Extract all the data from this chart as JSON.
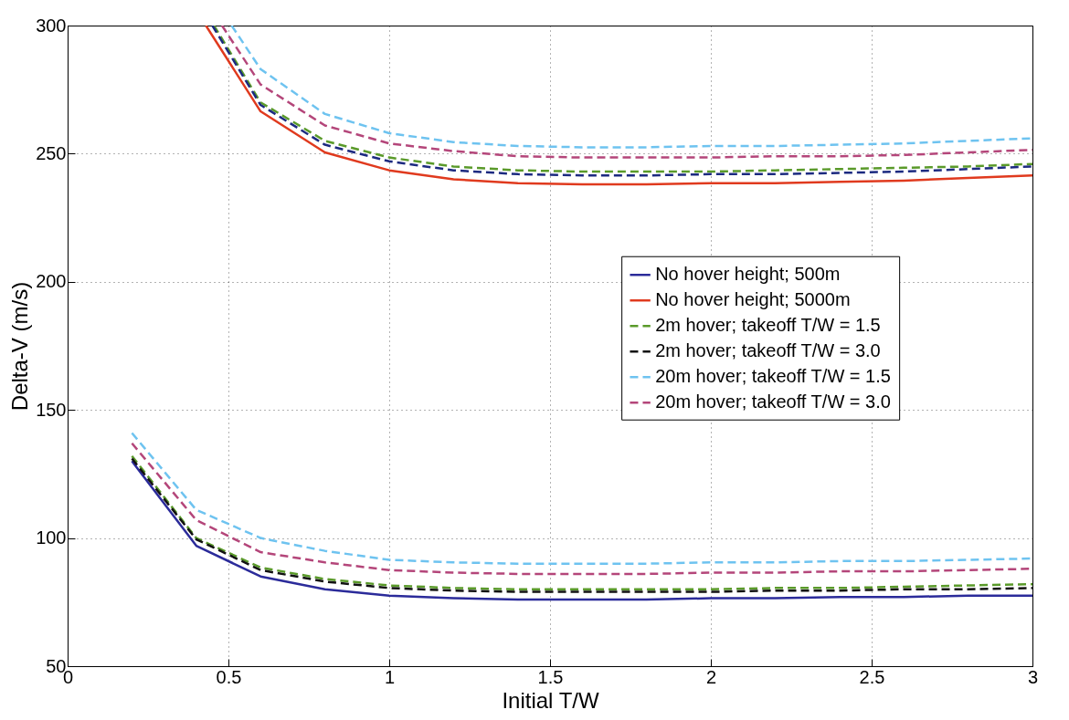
{
  "chart_data": {
    "type": "line",
    "xlabel": "Initial T/W",
    "ylabel": "Delta-V (m/s)",
    "xlim": [
      0,
      3
    ],
    "ylim": [
      50,
      300
    ],
    "xticks": [
      0,
      0.5,
      1,
      1.5,
      2,
      2.5,
      3
    ],
    "yticks": [
      50,
      100,
      150,
      200,
      250,
      300
    ],
    "grid": true,
    "legend": "right",
    "series": [
      {
        "name": "No hover height; 500m",
        "color": "#2b2b9a",
        "line_style": "solid",
        "x": [
          0.2,
          0.4,
          0.6,
          0.8,
          1.0,
          1.2,
          1.4,
          1.6,
          1.8,
          2.0,
          2.2,
          2.4,
          2.6,
          2.8,
          3.0
        ],
        "values": [
          130,
          97,
          85,
          80,
          77.5,
          76.5,
          76,
          76,
          76,
          76.5,
          76.5,
          77,
          77,
          77.5,
          77.5
        ]
      },
      {
        "name": "No hover height; 5000m",
        "color": "#e03a1e",
        "line_style": "solid",
        "x": [
          0.43,
          0.6,
          0.8,
          1.0,
          1.2,
          1.4,
          1.6,
          1.8,
          2.0,
          2.2,
          2.4,
          2.6,
          2.8,
          3.0
        ],
        "values": [
          300,
          266.5,
          250.5,
          243.5,
          240,
          238.5,
          238,
          238,
          238.5,
          238.5,
          239,
          239.5,
          240.5,
          241.5
        ]
      },
      {
        "name": "2m hover; takeoff T/W = 1.5",
        "color": "#5a9a2a",
        "line_style": "dashed",
        "x": [
          0.2,
          0.4,
          0.6,
          0.8,
          1.0,
          1.2,
          1.4,
          1.6,
          1.8,
          2.0,
          2.2,
          2.4,
          2.6,
          2.8,
          3.0
        ],
        "values": [
          132,
          100,
          88.5,
          84,
          81.5,
          80.5,
          80,
          80,
          80,
          80,
          80.5,
          80.5,
          81,
          81.5,
          82
        ]
      },
      {
        "name": "2m hover; takeoff T/W = 3.0",
        "color": "#111111",
        "line_style": "dashed",
        "x": [
          0.2,
          0.4,
          0.6,
          0.8,
          1.0,
          1.2,
          1.4,
          1.6,
          1.8,
          2.0,
          2.2,
          2.4,
          2.6,
          2.8,
          3.0
        ],
        "values": [
          131,
          99.5,
          87.5,
          83,
          80.5,
          79.5,
          79,
          79,
          79,
          79,
          79.5,
          79.5,
          80,
          80,
          80.5
        ]
      },
      {
        "name": "20m hover; takeoff T/W = 1.5",
        "color": "#6ec3f0",
        "line_style": "dashed",
        "x": [
          0.2,
          0.4,
          0.6,
          0.8,
          1.0,
          1.2,
          1.4,
          1.6,
          1.8,
          2.0,
          2.2,
          2.4,
          2.6,
          2.8,
          3.0
        ],
        "values": [
          141,
          111,
          100,
          95,
          91.5,
          90.5,
          90,
          90,
          90,
          90.5,
          90.5,
          91,
          91,
          91.5,
          92
        ]
      },
      {
        "name": "20m hover; takeoff T/W = 3.0",
        "color": "#b4467a",
        "line_style": "dashed",
        "x": [
          0.2,
          0.4,
          0.6,
          0.8,
          1.0,
          1.2,
          1.4,
          1.6,
          1.8,
          2.0,
          2.2,
          2.4,
          2.6,
          2.8,
          3.0
        ],
        "values": [
          137,
          107,
          94.5,
          90.5,
          87.5,
          86.5,
          86,
          86,
          86,
          86.5,
          86.5,
          87,
          87,
          87.5,
          88
        ]
      },
      {
        "color": "#5a9a2a",
        "line_style": "dashed",
        "x": [
          0.455,
          0.6,
          0.8,
          1.0,
          1.2,
          1.4,
          1.6,
          1.8,
          2.0,
          2.2,
          2.4,
          2.6,
          2.8,
          3.0
        ],
        "values": [
          300,
          270,
          255,
          248.5,
          245,
          243.5,
          243,
          243,
          243,
          243.5,
          244,
          244.5,
          245,
          246
        ]
      },
      {
        "color": "#1c2a80",
        "line_style": "dashed",
        "x": [
          0.45,
          0.6,
          0.8,
          1.0,
          1.2,
          1.4,
          1.6,
          1.8,
          2.0,
          2.2,
          2.4,
          2.6,
          2.8,
          3.0
        ],
        "values": [
          300,
          269,
          253.5,
          247,
          243.5,
          242,
          241.5,
          241.5,
          242,
          242,
          242.5,
          243,
          244,
          245
        ]
      },
      {
        "color": "#6ec3f0",
        "line_style": "dashed",
        "x": [
          0.51,
          0.6,
          0.8,
          1.0,
          1.2,
          1.4,
          1.6,
          1.8,
          2.0,
          2.2,
          2.4,
          2.6,
          2.8,
          3.0
        ],
        "values": [
          300,
          283,
          265.5,
          258,
          254.5,
          253,
          252.5,
          252.5,
          253,
          253,
          253.5,
          254,
          255,
          256
        ]
      },
      {
        "color": "#b4467a",
        "line_style": "dashed",
        "x": [
          0.48,
          0.6,
          0.8,
          1.0,
          1.2,
          1.4,
          1.6,
          1.8,
          2.0,
          2.2,
          2.4,
          2.6,
          2.8,
          3.0
        ],
        "values": [
          300,
          277,
          261,
          254,
          251,
          249,
          248.5,
          248.5,
          248.5,
          249,
          249,
          249.5,
          250.5,
          251.5
        ]
      }
    ]
  }
}
